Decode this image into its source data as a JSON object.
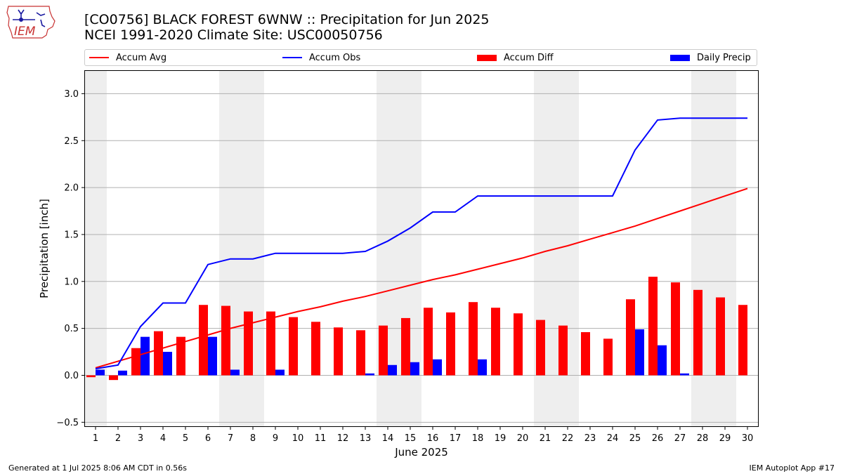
{
  "logo": {
    "text": "IEM"
  },
  "header": {
    "title": "[CO0756] BLACK FOREST 6WNW :: Precipitation for Jun 2025",
    "subtitle": "NCEI 1991-2020 Climate Site: USC00050756"
  },
  "legend": {
    "accum_avg": "Accum Avg",
    "accum_obs": "Accum Obs",
    "accum_diff": "Accum Diff",
    "daily_precip": "Daily Precip"
  },
  "footer": {
    "left": "Generated at 1 Jul 2025 8:06 AM CDT in 0.56s",
    "right": "IEM Autoplot App #17"
  },
  "colors": {
    "accum_avg": "#ff0000",
    "accum_obs": "#0000ff",
    "accum_diff": "#ff0000",
    "daily_precip": "#0000ff",
    "weekend_shade": "#eeeeee",
    "grid": "#b0b0b0"
  },
  "chart_data": {
    "type": "bar",
    "xlabel": "June 2025",
    "ylabel": "Precipitation [inch]",
    "ylim": [
      -0.55,
      3.25
    ],
    "yticks": [
      -0.5,
      0.0,
      0.5,
      1.0,
      1.5,
      2.0,
      2.5,
      3.0
    ],
    "ytick_labels": [
      "−0.5",
      "0.0",
      "0.5",
      "1.0",
      "1.5",
      "2.0",
      "2.5",
      "3.0"
    ],
    "grid": "horizontal",
    "legend_position": "top",
    "categories": [
      "1",
      "2",
      "3",
      "4",
      "5",
      "6",
      "7",
      "8",
      "9",
      "10",
      "11",
      "12",
      "13",
      "14",
      "15",
      "16",
      "17",
      "18",
      "19",
      "20",
      "21",
      "22",
      "23",
      "24",
      "25",
      "26",
      "27",
      "28",
      "29",
      "30"
    ],
    "shaded_days": [
      "1",
      "7",
      "8",
      "14",
      "15",
      "21",
      "22",
      "28",
      "29"
    ],
    "series": [
      {
        "name": "Accum Avg",
        "kind": "line",
        "values": [
          0.08,
          0.15,
          0.22,
          0.29,
          0.36,
          0.43,
          0.5,
          0.56,
          0.62,
          0.68,
          0.73,
          0.79,
          0.84,
          0.9,
          0.96,
          1.02,
          1.07,
          1.13,
          1.19,
          1.25,
          1.32,
          1.38,
          1.45,
          1.52,
          1.59,
          1.67,
          1.75,
          1.83,
          1.91,
          1.99
        ]
      },
      {
        "name": "Accum Obs",
        "kind": "line",
        "values": [
          0.07,
          0.11,
          0.52,
          0.77,
          0.77,
          1.18,
          1.24,
          1.24,
          1.3,
          1.3,
          1.3,
          1.3,
          1.32,
          1.43,
          1.57,
          1.74,
          1.74,
          1.91,
          1.91,
          1.91,
          1.91,
          1.91,
          1.91,
          1.91,
          2.4,
          2.72,
          2.74,
          2.74,
          2.74,
          2.74
        ]
      },
      {
        "name": "Accum Diff",
        "kind": "bar",
        "values": [
          -0.02,
          -0.05,
          0.29,
          0.47,
          0.41,
          0.75,
          0.74,
          0.68,
          0.68,
          0.62,
          0.57,
          0.51,
          0.48,
          0.53,
          0.61,
          0.72,
          0.67,
          0.78,
          0.72,
          0.66,
          0.59,
          0.53,
          0.46,
          0.39,
          0.81,
          1.05,
          0.99,
          0.91,
          0.83,
          0.75
        ]
      },
      {
        "name": "Daily Precip",
        "kind": "bar",
        "values": [
          0.06,
          0.05,
          0.41,
          0.25,
          0.0,
          0.41,
          0.06,
          0.0,
          0.06,
          0.0,
          0.0,
          0.0,
          0.02,
          0.11,
          0.14,
          0.17,
          0.0,
          0.17,
          0.0,
          0.0,
          0.0,
          0.0,
          0.0,
          0.0,
          0.49,
          0.32,
          0.02,
          0.0,
          0.0,
          0.0
        ]
      }
    ]
  }
}
